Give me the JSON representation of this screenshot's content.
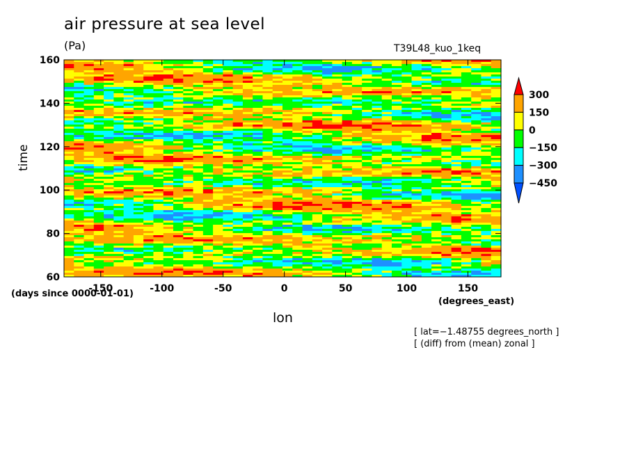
{
  "chart_data": {
    "type": "heatmap",
    "title": "air pressure at sea level",
    "units": "(Pa)",
    "run_label": "T39L48_kuo_1keq",
    "xlabel": "lon",
    "ylabel": "time",
    "x_units": "(degrees_east)",
    "y_units": "(days since 0000-01-01)",
    "xlim": [
      -180,
      177
    ],
    "ylim": [
      60,
      160
    ],
    "x_ticks": [
      -150,
      -100,
      -50,
      0,
      50,
      100,
      150
    ],
    "x_tick_labels": [
      "-150",
      "-100",
      "-50",
      "0",
      "50",
      "100",
      "150"
    ],
    "y_ticks": [
      60,
      80,
      100,
      120,
      140,
      160
    ],
    "y_tick_labels": [
      "60",
      "80",
      "100",
      "120",
      "140",
      "160"
    ],
    "colorbar": {
      "levels": [
        300,
        150,
        0,
        -150,
        -300,
        -450
      ],
      "level_labels": [
        "300",
        "150",
        "0",
        "−150",
        "−300",
        "−450"
      ],
      "colors": [
        "#ff0000",
        "#ffa500",
        "#ffff00",
        "#00ff00",
        "#00ffff",
        "#1e90ff",
        "#0050ff"
      ]
    },
    "annotations": [
      "[ lat=−1.48755 degrees_north ]",
      "[ (diff) from (mean) zonal ]"
    ]
  }
}
